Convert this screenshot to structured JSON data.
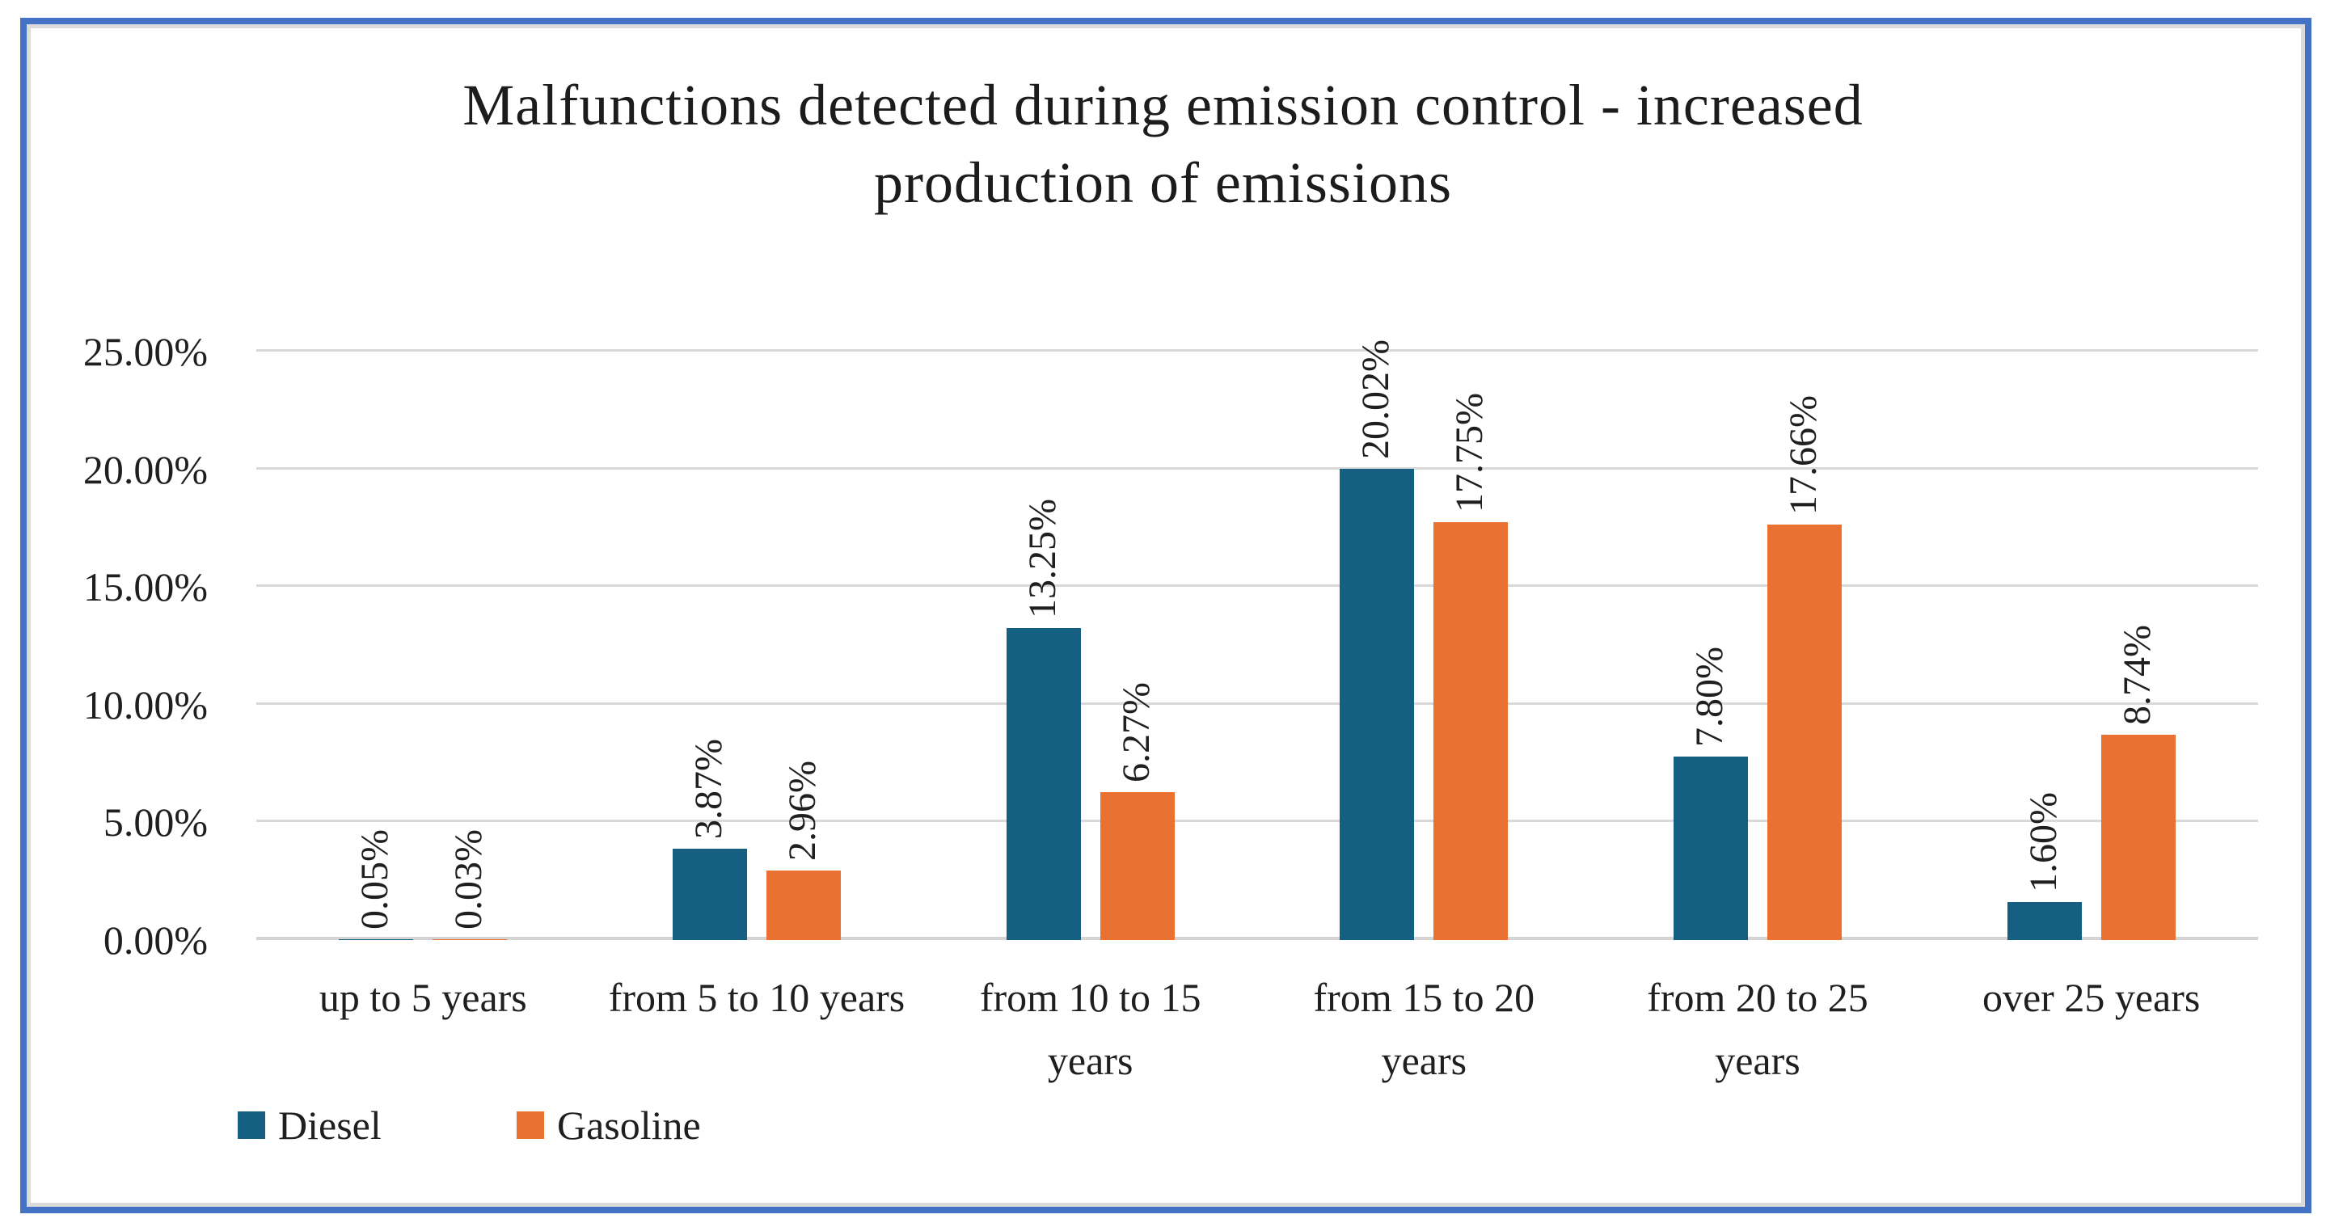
{
  "frame": {
    "outer_border_color": "#4472C4",
    "inner_border_color": "#DBDBDB"
  },
  "chart_data": {
    "type": "bar",
    "title": "Malfunctions detected during emission control - increased production of emissions",
    "title_lines": [
      "Malfunctions detected during emission control - increased",
      "production of emissions"
    ],
    "categories": [
      "up to 5 years",
      "from 5 to 10 years",
      "from 10 to 15\nyears",
      "from 15 to 20\nyears",
      "from 20 to 25\nyears",
      "over 25 years"
    ],
    "series": [
      {
        "name": "Diesel",
        "color": "#156082",
        "values": [
          0.05,
          3.87,
          13.25,
          20.02,
          7.8,
          1.6
        ],
        "labels": [
          "0.05%",
          "3.87%",
          "13.25%",
          "20.02%",
          "7.80%",
          "1.60%"
        ]
      },
      {
        "name": "Gasoline",
        "color": "#E97132",
        "values": [
          0.03,
          2.96,
          6.27,
          17.75,
          17.66,
          8.74
        ],
        "labels": [
          "0.03%",
          "2.96%",
          "6.27%",
          "17.75%",
          "17.66%",
          "8.74%"
        ]
      }
    ],
    "yticks": {
      "labels": [
        "0.00%",
        "5.00%",
        "10.00%",
        "15.00%",
        "20.00%",
        "25.00%"
      ],
      "values": [
        0,
        5,
        10,
        15,
        20,
        25
      ]
    },
    "ylim": [
      0,
      25
    ],
    "grid": true,
    "gridline_color": "#D9D9D9",
    "data_label_rotation": -90,
    "legend_position": "bottom-left"
  }
}
